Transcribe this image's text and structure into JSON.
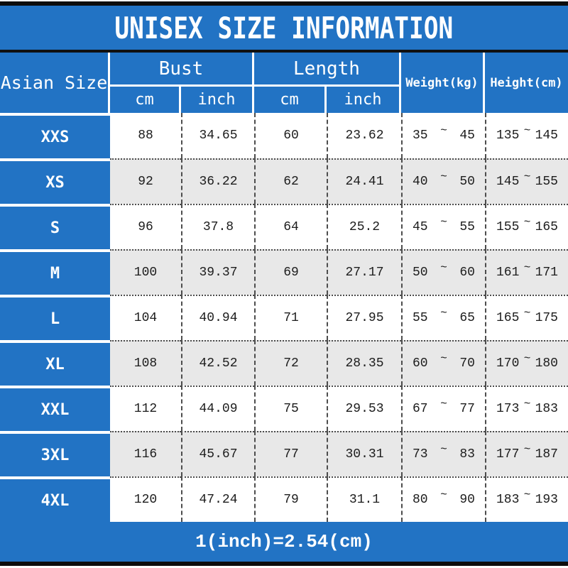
{
  "title": "UNISEX SIZE INFORMATION",
  "header": {
    "size_col": "Asian Size",
    "bust": {
      "label": "Bust",
      "cm": "cm",
      "inch": "inch"
    },
    "length": {
      "label": "Length",
      "cm": "cm",
      "inch": "inch"
    },
    "weight": "Weight(kg)",
    "height": "Height(cm)"
  },
  "range_separator": "~",
  "rows": [
    {
      "size": "XXS",
      "bust_cm": "88",
      "bust_inch": "34.65",
      "length_cm": "60",
      "length_inch": "23.62",
      "weight": [
        "35",
        "45"
      ],
      "height": [
        "135",
        "145"
      ]
    },
    {
      "size": "XS",
      "bust_cm": "92",
      "bust_inch": "36.22",
      "length_cm": "62",
      "length_inch": "24.41",
      "weight": [
        "40",
        "50"
      ],
      "height": [
        "145",
        "155"
      ]
    },
    {
      "size": "S",
      "bust_cm": "96",
      "bust_inch": "37.8",
      "length_cm": "64",
      "length_inch": "25.2",
      "weight": [
        "45",
        "55"
      ],
      "height": [
        "155",
        "165"
      ]
    },
    {
      "size": "M",
      "bust_cm": "100",
      "bust_inch": "39.37",
      "length_cm": "69",
      "length_inch": "27.17",
      "weight": [
        "50",
        "60"
      ],
      "height": [
        "161",
        "171"
      ]
    },
    {
      "size": "L",
      "bust_cm": "104",
      "bust_inch": "40.94",
      "length_cm": "71",
      "length_inch": "27.95",
      "weight": [
        "55",
        "65"
      ],
      "height": [
        "165",
        "175"
      ]
    },
    {
      "size": "XL",
      "bust_cm": "108",
      "bust_inch": "42.52",
      "length_cm": "72",
      "length_inch": "28.35",
      "weight": [
        "60",
        "70"
      ],
      "height": [
        "170",
        "180"
      ]
    },
    {
      "size": "XXL",
      "bust_cm": "112",
      "bust_inch": "44.09",
      "length_cm": "75",
      "length_inch": "29.53",
      "weight": [
        "67",
        "77"
      ],
      "height": [
        "173",
        "183"
      ]
    },
    {
      "size": "3XL",
      "bust_cm": "116",
      "bust_inch": "45.67",
      "length_cm": "77",
      "length_inch": "30.31",
      "weight": [
        "73",
        "83"
      ],
      "height": [
        "177",
        "187"
      ]
    },
    {
      "size": "4XL",
      "bust_cm": "120",
      "bust_inch": "47.24",
      "length_cm": "79",
      "length_inch": "31.1",
      "weight": [
        "80",
        "90"
      ],
      "height": [
        "183",
        "193"
      ]
    }
  ],
  "footer": "1(inch)=2.54(cm)",
  "colors": {
    "blue": "#2273c4",
    "alt_row": "#e8e8e8",
    "bar": "#0d0d0d"
  }
}
